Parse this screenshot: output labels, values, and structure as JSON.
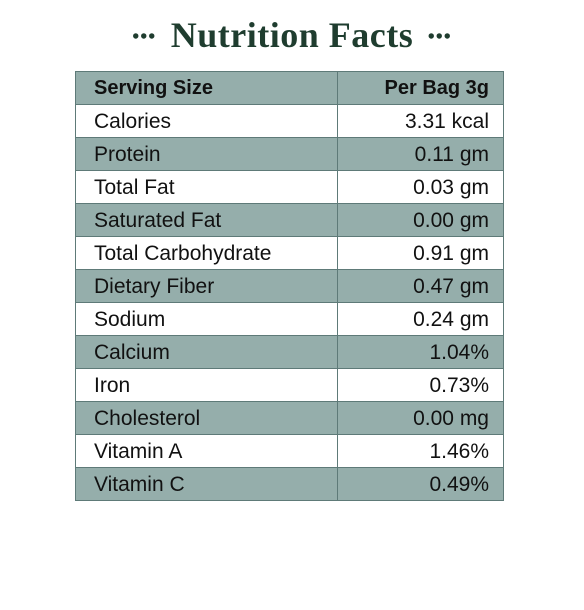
{
  "title": "Nutrition Facts",
  "title_ornament_left": "•••",
  "title_ornament_right": "•••",
  "header": {
    "label": "Serving Size",
    "value": "Per Bag 3g"
  },
  "rows": [
    {
      "label": "Calories",
      "value": "3.31 kcal"
    },
    {
      "label": "Protein",
      "value": "0.11 gm"
    },
    {
      "label": "Total Fat",
      "value": "0.03 gm"
    },
    {
      "label": "Saturated Fat",
      "value": "0.00 gm"
    },
    {
      "label": "Total Carbohydrate",
      "value": "0.91 gm"
    },
    {
      "label": "Dietary Fiber",
      "value": "0.47 gm"
    },
    {
      "label": "Sodium",
      "value": "0.24 gm"
    },
    {
      "label": "Calcium",
      "value": "1.04%"
    },
    {
      "label": "Iron",
      "value": "0.73%"
    },
    {
      "label": "Cholesterol",
      "value": "0.00 mg"
    },
    {
      "label": "Vitamin A",
      "value": "1.46%"
    },
    {
      "label": "Vitamin C",
      "value": "0.49%"
    }
  ],
  "colors": {
    "title": "#1f3d2f",
    "shaded_row": "#95aeab",
    "border": "#5e7a78"
  }
}
